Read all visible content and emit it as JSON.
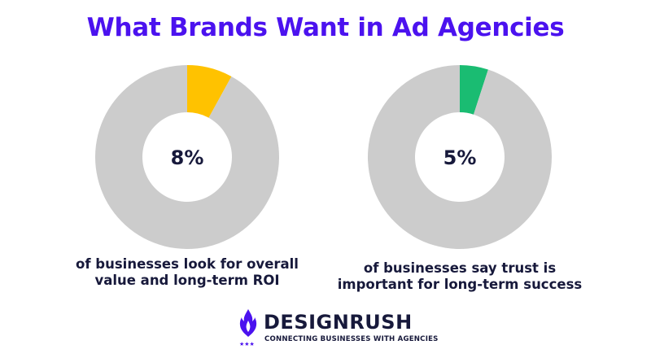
{
  "title": "What Brands Want in Ad Agencies",
  "chart_data": [
    {
      "type": "pie",
      "variant": "donut",
      "slices": [
        {
          "label": "",
          "value": 8,
          "color": "#ffc200"
        },
        {
          "label": "",
          "value": 92,
          "color": "#cccccc"
        }
      ],
      "center_label": "8%",
      "caption_lines": [
        "of businesses look for overall",
        "value and long-term ROI"
      ]
    },
    {
      "type": "pie",
      "variant": "donut",
      "slices": [
        {
          "label": "",
          "value": 5,
          "color": "#1abc72"
        },
        {
          "label": "",
          "value": 95,
          "color": "#cccccc"
        }
      ],
      "center_label": "5%",
      "caption_lines": [
        "of businesses say trust is",
        "important for long-term success"
      ]
    }
  ],
  "brand": {
    "name": "DESIGNRUSH",
    "tagline": "CONNECTING BUSINESSES WITH AGENCIES",
    "logo_icon": "designrush-flame-icon",
    "accent_color": "#4b12ef"
  }
}
